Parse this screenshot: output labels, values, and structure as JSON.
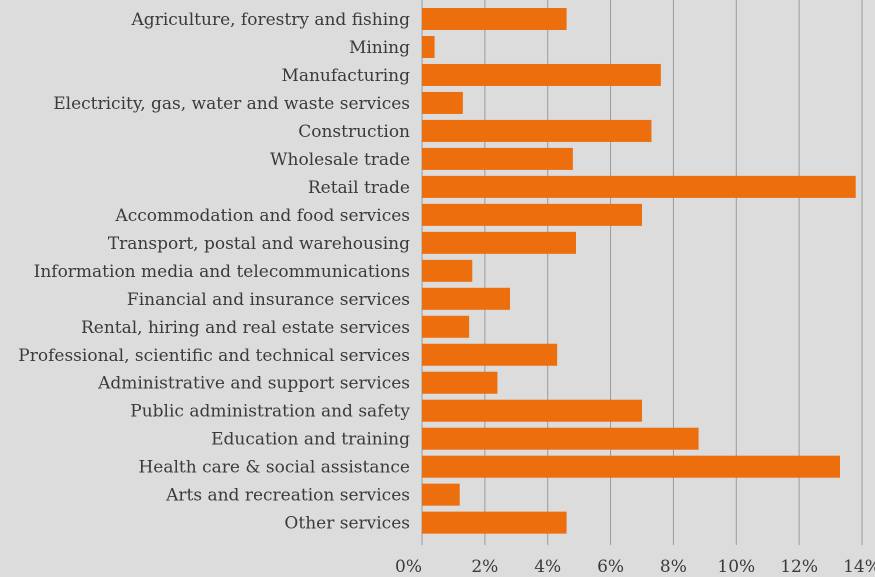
{
  "chart_data": {
    "type": "bar",
    "orientation": "horizontal",
    "categories": [
      "Agriculture, forestry and fishing",
      "Mining",
      "Manufacturing",
      "Electricity, gas, water and waste services",
      "Construction",
      "Wholesale trade",
      "Retail trade",
      "Accommodation and food services",
      "Transport, postal and warehousing",
      "Information media and telecommunications",
      "Financial and insurance services",
      "Rental, hiring and real estate services",
      "Professional, scientific and technical services",
      "Administrative and support services",
      "Public administration and safety",
      "Education and training",
      "Health care & social assistance",
      "Arts and recreation services",
      "Other services"
    ],
    "values": [
      4.6,
      0.4,
      7.6,
      1.3,
      7.3,
      4.8,
      13.8,
      7.0,
      4.9,
      1.6,
      2.8,
      1.5,
      4.3,
      2.4,
      7.0,
      8.8,
      13.3,
      1.2,
      4.6
    ],
    "xticks": [
      "0%",
      "2%",
      "4%",
      "6%",
      "8%",
      "10%",
      "12%",
      "14%"
    ],
    "xlim": [
      0,
      14
    ],
    "bar_color": "#ec6e0c",
    "grid": true,
    "title": "",
    "xlabel": "",
    "ylabel": ""
  }
}
